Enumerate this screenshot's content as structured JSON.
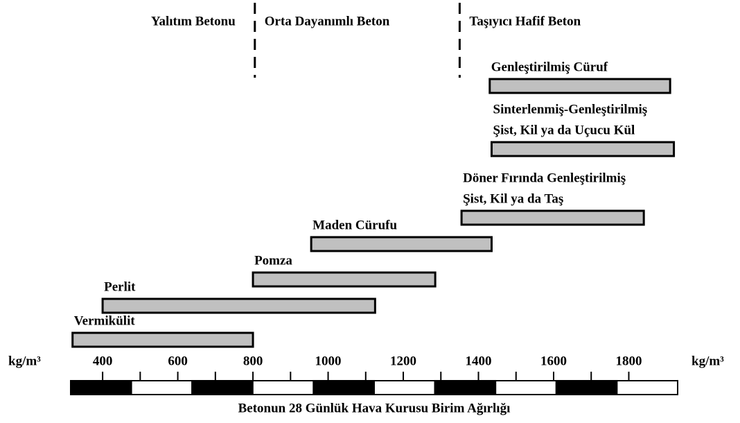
{
  "chart_data": {
    "type": "range-bar",
    "x_label": "Betonun 28 Günlük Hava Kurusu Birim Ağırlığı",
    "unit": "kg/m³",
    "zones": [
      "Yalıtım Betonu",
      "Orta Dayanımlı Beton",
      "Taşıyıcı Hafif Beton"
    ],
    "zone_boundaries": [
      805,
      1350
    ],
    "categories": [
      [
        "Vermikülit"
      ],
      [
        "Perlit"
      ],
      [
        "Pomza"
      ],
      [
        "Maden Cürufu"
      ],
      [
        "Döner Fırında Genleştirilmiş",
        "Şist, Kil ya da Taş"
      ],
      [
        "Sinterlenmiş-Genleştirilmiş",
        "Şist, Kil ya da Uçucu Kül"
      ],
      [
        "Genleştirilmiş Cüruf"
      ]
    ],
    "values": [
      [
        320,
        800
      ],
      [
        400,
        1125
      ],
      [
        800,
        1285
      ],
      [
        955,
        1435
      ],
      [
        1355,
        1840
      ],
      [
        1435,
        1920
      ],
      [
        1430,
        1910
      ]
    ],
    "color": "#c0c0c0",
    "xlim": [
      315,
      1930
    ],
    "xticks": [
      400,
      600,
      800,
      1000,
      1200,
      1400,
      1600,
      1800
    ]
  }
}
